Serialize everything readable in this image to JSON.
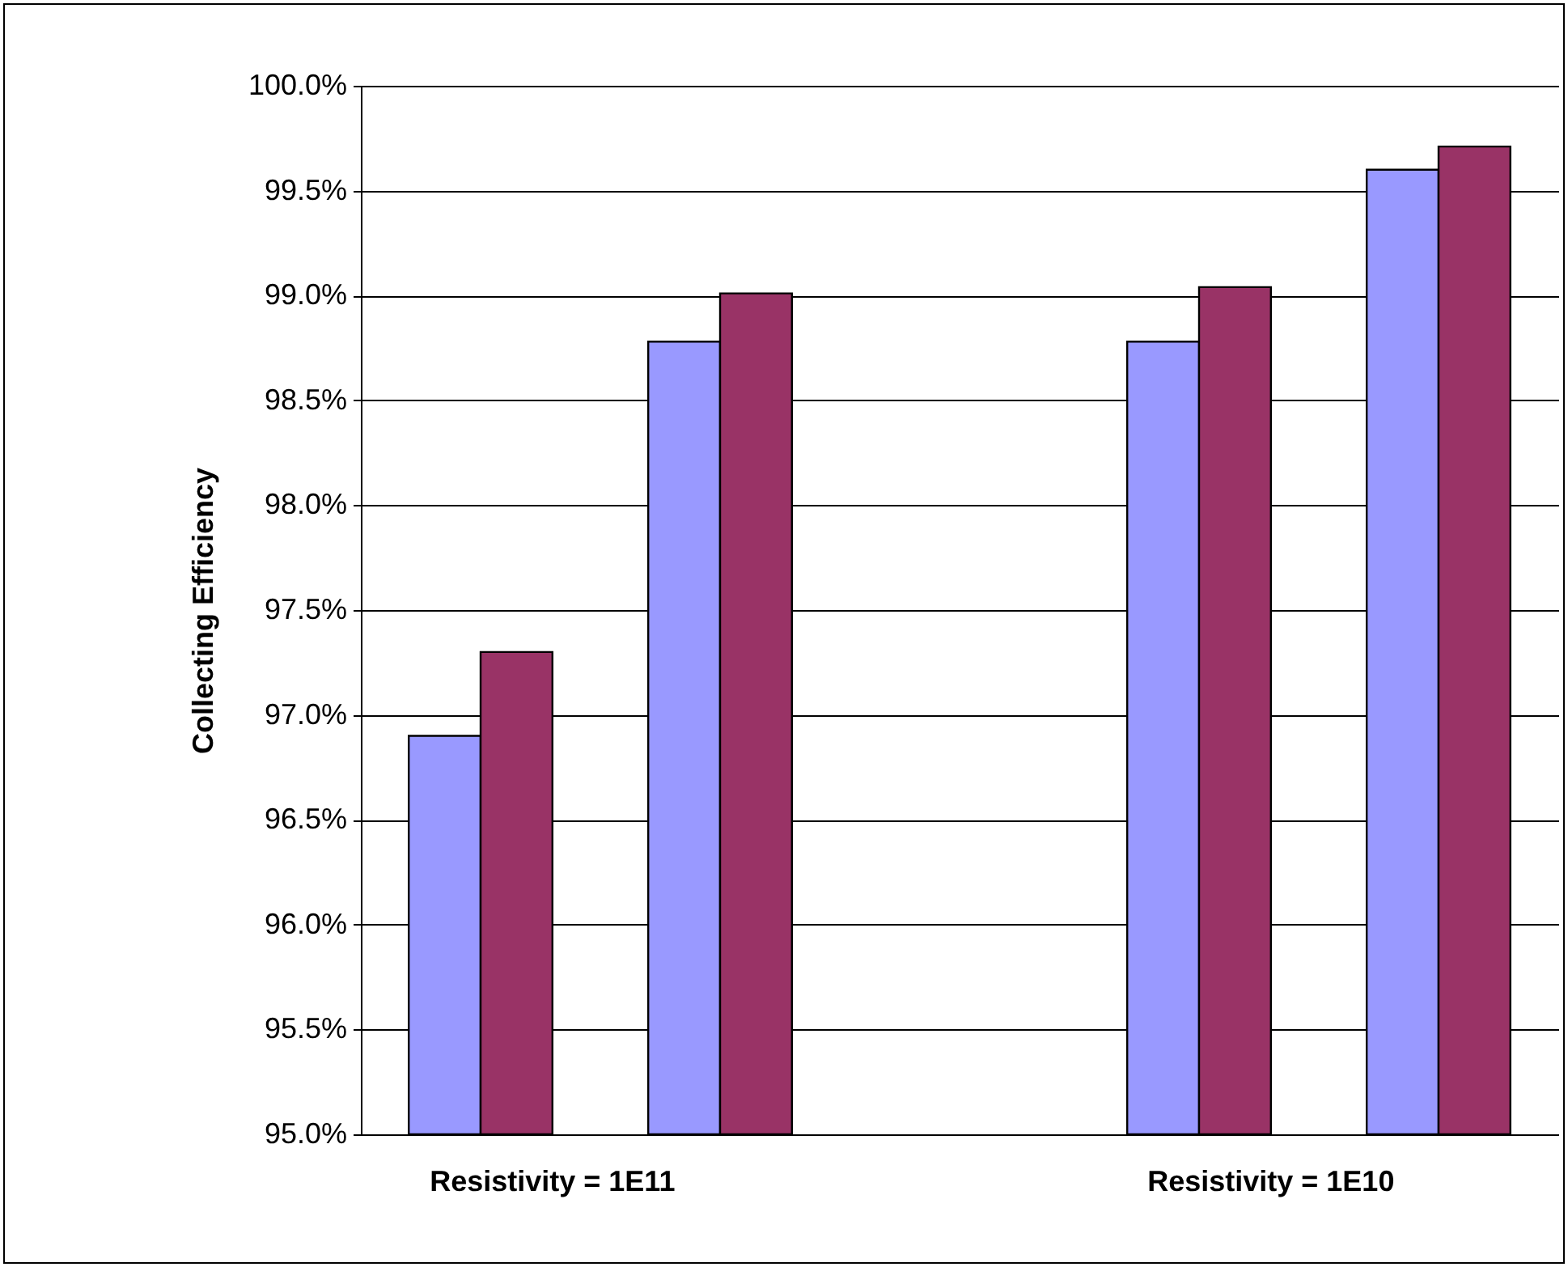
{
  "chart_data": {
    "type": "bar",
    "ylabel": "Collecting Efficiency",
    "categories": [
      null,
      null,
      null,
      null,
      null
    ],
    "series": [
      {
        "color": "#9999ff",
        "values": [
          96.9,
          98.78,
          null,
          98.78,
          99.6
        ]
      },
      {
        "color": "#993366",
        "values": [
          97.3,
          99.01,
          null,
          99.04,
          99.71
        ]
      }
    ],
    "ylim": [
      95,
      100
    ],
    "yticks": [
      {
        "value": 95,
        "label": "95.0%"
      },
      {
        "value": 95.5,
        "label": "95.5%"
      },
      {
        "value": 96,
        "label": "96.0%"
      },
      {
        "value": 96.5,
        "label": "96.5%"
      },
      {
        "value": 97,
        "label": "97.0%"
      },
      {
        "value": 97.5,
        "label": "97.5%"
      },
      {
        "value": 98,
        "label": "98.0%"
      },
      {
        "value": 98.5,
        "label": "98.5%"
      },
      {
        "value": 99,
        "label": "99.0%"
      },
      {
        "value": 99.5,
        "label": "99.5%"
      },
      {
        "value": 100,
        "label": "100.0%"
      }
    ],
    "grid": "y",
    "tick_labels": "y",
    "annotations": [
      "Resistivity = 1E11",
      "Resistivity = 1E10"
    ]
  }
}
